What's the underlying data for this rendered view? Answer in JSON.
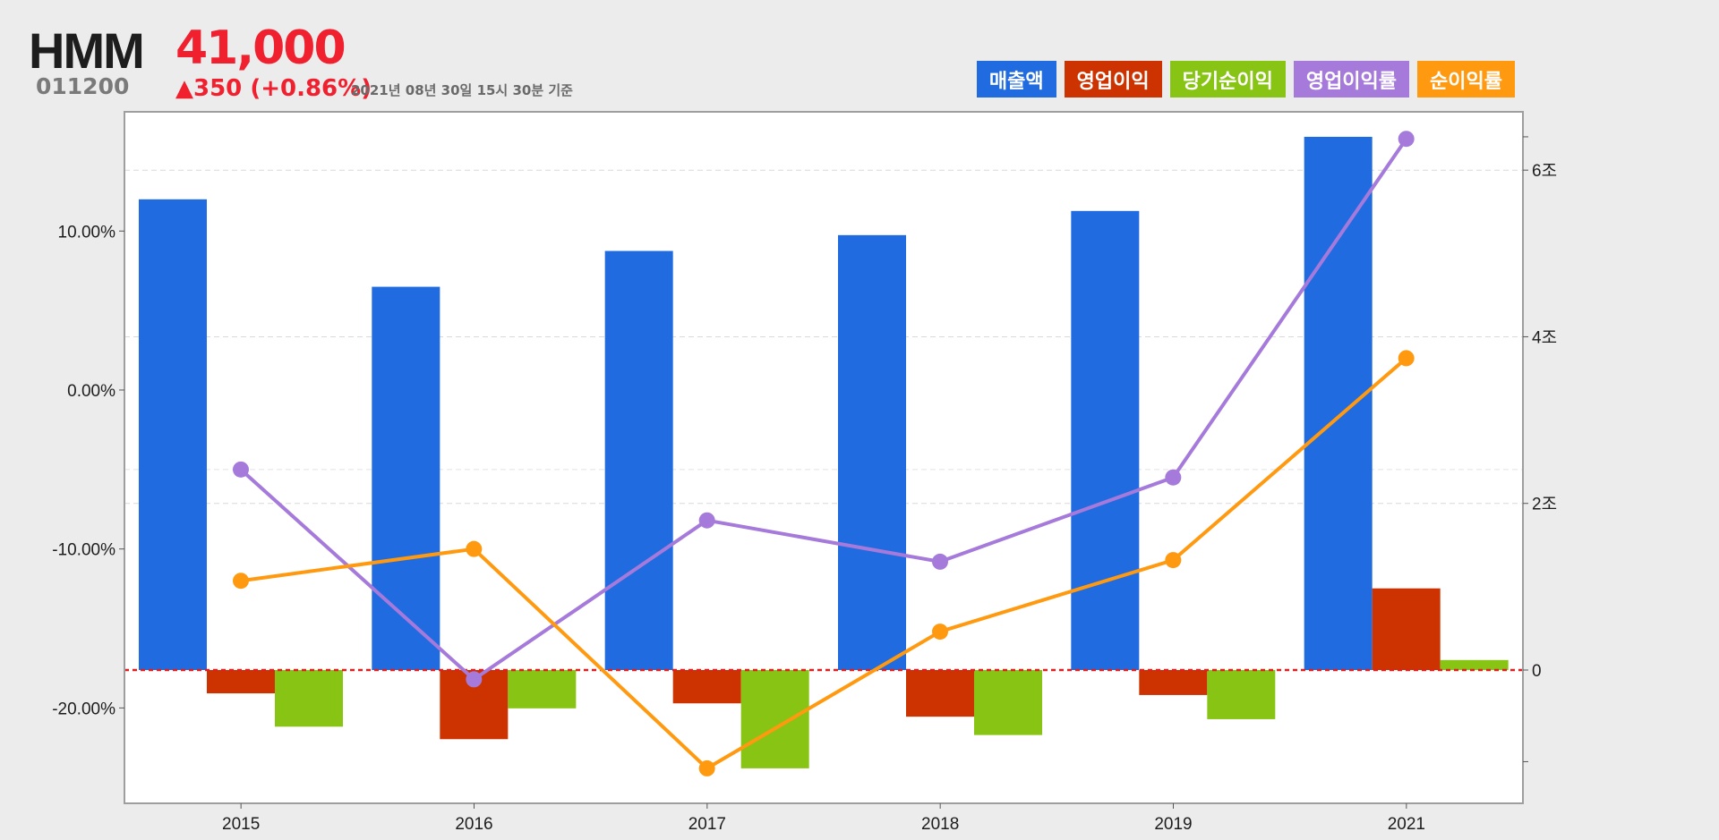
{
  "header": {
    "company": "HMM",
    "code": "011200",
    "price": "41,000",
    "change": "▲350 (+0.86%)",
    "timestamp": "2021년 08년 30일 15시 30분 기준"
  },
  "colors": {
    "price_up": "#f0202f",
    "revenue": "#216be0",
    "operating_profit": "#cc3300",
    "net_income": "#88c413",
    "operating_margin": "#a57adb",
    "net_margin": "#ff9a10",
    "zero_line": "#e02020"
  },
  "legend": [
    {
      "label": "매출액",
      "color": "#216be0"
    },
    {
      "label": "영업이익",
      "color": "#cc3300"
    },
    {
      "label": "당기순이익",
      "color": "#88c413"
    },
    {
      "label": "영업이익률",
      "color": "#a57adb"
    },
    {
      "label": "순이익률",
      "color": "#ff9a10"
    }
  ],
  "chart_data": {
    "type": "bar",
    "categories": [
      "2015",
      "2016",
      "2017",
      "2018",
      "2019",
      "2021"
    ],
    "left_axis": {
      "ticks": [
        10,
        0,
        -10,
        -20
      ],
      "tick_labels": [
        "10.00%",
        "0.00%",
        "-10.00%",
        "-20.00%"
      ],
      "range": [
        -26,
        17.5
      ]
    },
    "right_axis": {
      "ticks": [
        6,
        4,
        2,
        0
      ],
      "tick_labels": [
        "6조",
        "4조",
        "2조",
        "0"
      ],
      "range": [
        -1.6,
        6.7
      ]
    },
    "grid": true,
    "legend_position": "top-right",
    "series": [
      {
        "name": "매출액",
        "axis": "right",
        "kind": "bar",
        "color": "#216be0",
        "values": [
          5.65,
          4.6,
          5.03,
          5.22,
          5.51,
          6.4
        ]
      },
      {
        "name": "영업이익",
        "axis": "right",
        "kind": "bar",
        "color": "#cc3300",
        "values": [
          -0.28,
          -0.83,
          -0.4,
          -0.56,
          -0.3,
          0.98
        ]
      },
      {
        "name": "당기순이익",
        "axis": "right",
        "kind": "bar",
        "color": "#88c413",
        "values": [
          -0.68,
          -0.46,
          -1.18,
          -0.78,
          -0.59,
          0.12
        ]
      },
      {
        "name": "영업이익률",
        "axis": "left",
        "kind": "line",
        "color": "#a57adb",
        "values": [
          -5,
          -18.2,
          -8.2,
          -10.8,
          -5.5,
          15.8
        ]
      },
      {
        "name": "순이익률",
        "axis": "left",
        "kind": "line",
        "color": "#ff9a10",
        "values": [
          -12,
          -10,
          -23.8,
          -15.2,
          -10.7,
          2
        ]
      }
    ]
  }
}
